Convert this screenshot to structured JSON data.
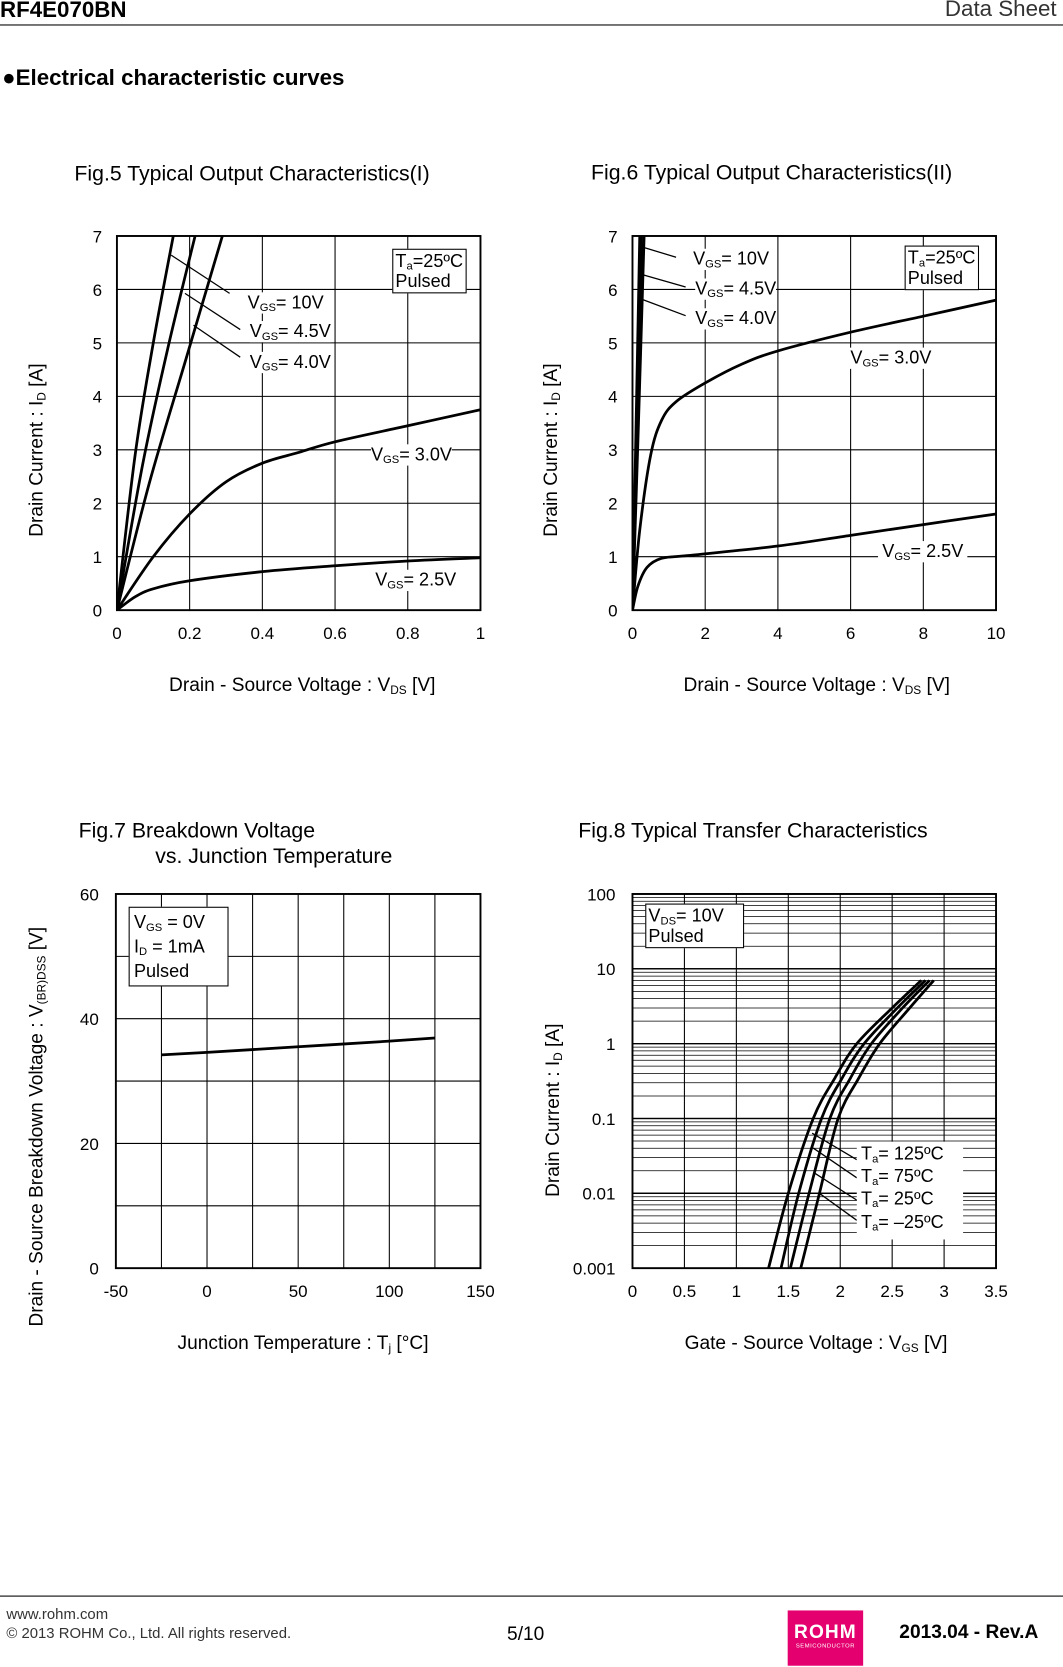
{
  "header": {
    "part_number": "RF4E070BN",
    "doc_type": "Data Sheet"
  },
  "section_title": "●Electrical characteristic curves",
  "footer": {
    "url": "www.rohm.com",
    "copyright": "© 2013  ROHM Co., Ltd. All rights reserved.",
    "page": "5/10",
    "revision": "2013.04 -  Rev.A",
    "logo": "ROHM SEMICONDUCTOR",
    "logo_main": "ROHM",
    "logo_sub": "SEMICONDUCTOR",
    "logo_color": "#e4006e"
  },
  "chart_data": [
    {
      "id": "fig5",
      "type": "line",
      "title": "Fig.5 Typical Output Characteristics(I)",
      "xlabel": {
        "main": "Drain - Source Voltage : V",
        "sub": "DS",
        "rest": " [V]"
      },
      "ylabel": {
        "main": "Drain Current : I",
        "sub": "D",
        "rest": " [A]"
      },
      "xlim": [
        0,
        1
      ],
      "ylim": [
        0,
        7
      ],
      "grid": true,
      "xticks": [
        "0",
        "0.2",
        "0.4",
        "0.6",
        "0.8",
        "1"
      ],
      "yticks": [
        "0",
        "1",
        "2",
        "3",
        "4",
        "5",
        "6",
        "7"
      ],
      "annotation": {
        "line1_main": "T",
        "line1_sub": "a",
        "line1_rest": "=25ºC",
        "line2": "Pulsed"
      },
      "series": [
        {
          "name": {
            "main": "V",
            "sub": "GS",
            "rest": "= 10V"
          },
          "x": [
            0,
            0.05,
            0.1,
            0.155
          ],
          "y": [
            0,
            2.9,
            5,
            7
          ]
        },
        {
          "name": {
            "main": "V",
            "sub": "GS",
            "rest": "= 4.5V"
          },
          "x": [
            0,
            0.07,
            0.14,
            0.215
          ],
          "y": [
            0,
            2.7,
            4.9,
            7
          ]
        },
        {
          "name": {
            "main": "V",
            "sub": "GS",
            "rest": "= 4.0V"
          },
          "x": [
            0,
            0.09,
            0.19,
            0.29
          ],
          "y": [
            0,
            2.4,
            4.7,
            7
          ]
        },
        {
          "name": {
            "main": "V",
            "sub": "GS",
            "rest": "= 3.0V"
          },
          "x": [
            0,
            0.1,
            0.2,
            0.3,
            0.4,
            0.5,
            0.6,
            0.8,
            1
          ],
          "y": [
            0,
            1,
            1.8,
            2.4,
            2.75,
            2.95,
            3.15,
            3.45,
            3.75
          ]
        },
        {
          "name": {
            "main": "V",
            "sub": "GS",
            "rest": "= 2.5V"
          },
          "x": [
            0,
            0.05,
            0.1,
            0.2,
            0.4,
            0.6,
            0.8,
            1
          ],
          "y": [
            0,
            0.25,
            0.4,
            0.55,
            0.72,
            0.83,
            0.92,
            0.98
          ]
        }
      ]
    },
    {
      "id": "fig6",
      "type": "line",
      "title": "Fig.6 Typical Output Characteristics(II)",
      "xlabel": {
        "main": "Drain - Source Voltage : V",
        "sub": "DS",
        "rest": " [V]"
      },
      "ylabel": {
        "main": "Drain Current : I",
        "sub": "D",
        "rest": " [A]"
      },
      "xlim": [
        0,
        10
      ],
      "ylim": [
        0,
        7
      ],
      "grid": true,
      "xticks": [
        "0",
        "2",
        "4",
        "6",
        "8",
        "10"
      ],
      "yticks": [
        "0",
        "1",
        "2",
        "3",
        "4",
        "5",
        "6",
        "7"
      ],
      "annotation": {
        "line1_main": "T",
        "line1_sub": "a",
        "line1_rest": "=25ºC",
        "line2": "Pulsed"
      },
      "series": [
        {
          "name": {
            "main": "V",
            "sub": "GS",
            "rest": "= 10V"
          },
          "x": [
            0,
            0.1,
            0.2
          ],
          "y": [
            0,
            3.5,
            7
          ]
        },
        {
          "name": {
            "main": "V",
            "sub": "GS",
            "rest": "= 4.5V"
          },
          "x": [
            0,
            0.13,
            0.25
          ],
          "y": [
            0,
            3.5,
            7
          ]
        },
        {
          "name": {
            "main": "V",
            "sub": "GS",
            "rest": "= 4.0V"
          },
          "x": [
            0,
            0.16,
            0.32
          ],
          "y": [
            0,
            3.4,
            7
          ]
        },
        {
          "name": {
            "main": "V",
            "sub": "GS",
            "rest": "= 3.0V"
          },
          "x": [
            0,
            0.2,
            0.5,
            0.8,
            1.2,
            2,
            3,
            4,
            6,
            8,
            10
          ],
          "y": [
            0,
            1.5,
            2.9,
            3.55,
            3.9,
            4.25,
            4.6,
            4.85,
            5.2,
            5.5,
            5.8
          ]
        },
        {
          "name": {
            "main": "V",
            "sub": "GS",
            "rest": "= 2.5V"
          },
          "x": [
            0,
            0.15,
            0.4,
            0.8,
            1.5,
            4,
            6,
            8,
            10
          ],
          "y": [
            0,
            0.45,
            0.8,
            0.97,
            1.02,
            1.2,
            1.4,
            1.6,
            1.8
          ]
        }
      ]
    },
    {
      "id": "fig7",
      "type": "line",
      "title": "Fig.7 Breakdown Voltage",
      "title2": "vs. Junction Temperature",
      "xlabel": {
        "main": "Junction Temperature : T",
        "sub": "j",
        "rest": " [°C]"
      },
      "ylabel": {
        "main": "Drain - Source Breakdown Voltage : V",
        "sub": "(BR)DSS",
        "rest": " [V]"
      },
      "xlim": [
        -50,
        150
      ],
      "ylim": [
        0,
        60
      ],
      "grid": true,
      "xticks": [
        "-50",
        "0",
        "50",
        "100",
        "150"
      ],
      "yticks": [
        "0",
        "20",
        "40",
        "60"
      ],
      "annotation": {
        "line1_main": "V",
        "line1_sub": "GS",
        "line1_rest": " = 0V",
        "line2_main": "I",
        "line2_sub": "D",
        "line2_rest": " = 1mA",
        "line3": "Pulsed"
      },
      "series": [
        {
          "x": [
            -25,
            0,
            50,
            100,
            125
          ],
          "y": [
            34.2,
            34.6,
            35.5,
            36.4,
            36.9
          ]
        }
      ]
    },
    {
      "id": "fig8",
      "type": "line",
      "title": "Fig.8 Typical Transfer Characteristics",
      "xlabel": {
        "main": "Gate - Source Voltage : V",
        "sub": "GS",
        "rest": " [V]"
      },
      "ylabel": {
        "main": "Drain Current : I",
        "sub": "D",
        "rest": " [A]"
      },
      "xlim": [
        0,
        3.5
      ],
      "ylim": [
        0.001,
        100
      ],
      "yscale": "log",
      "grid": true,
      "xticks": [
        "0",
        "0.5",
        "1",
        "1.5",
        "2",
        "2.5",
        "3",
        "3.5"
      ],
      "yticks": [
        "0.001",
        "0.01",
        "0.1",
        "1",
        "10",
        "100"
      ],
      "annotation": {
        "line1_main": "V",
        "line1_sub": "DS",
        "line1_rest": "= 10V",
        "line2": "Pulsed"
      },
      "series": [
        {
          "name": {
            "main": "T",
            "sub": "a",
            "rest": "= 125ºC"
          },
          "x": [
            1.31,
            1.5,
            1.74,
            1.95,
            2.16,
            2.5,
            2.78
          ],
          "y": [
            0.001,
            0.01,
            0.1,
            0.35,
            1,
            3,
            7
          ]
        },
        {
          "name": {
            "main": "T",
            "sub": "a",
            "rest": "= 75ºC"
          },
          "x": [
            1.43,
            1.6,
            1.82,
            2.02,
            2.23,
            2.55,
            2.82
          ],
          "y": [
            0.001,
            0.01,
            0.1,
            0.35,
            1,
            3,
            7
          ]
        },
        {
          "name": {
            "main": "T",
            "sub": "a",
            "rest": "= 25ºC"
          },
          "x": [
            1.52,
            1.7,
            1.9,
            2.1,
            2.3,
            2.6,
            2.86
          ],
          "y": [
            0.001,
            0.01,
            0.1,
            0.35,
            1,
            3,
            7
          ]
        },
        {
          "name": {
            "main": "T",
            "sub": "a",
            "rest": "= –25ºC"
          },
          "x": [
            1.62,
            1.8,
            1.98,
            2.18,
            2.38,
            2.65,
            2.9
          ],
          "y": [
            0.001,
            0.01,
            0.1,
            0.35,
            1,
            2.8,
            7
          ]
        }
      ]
    }
  ]
}
